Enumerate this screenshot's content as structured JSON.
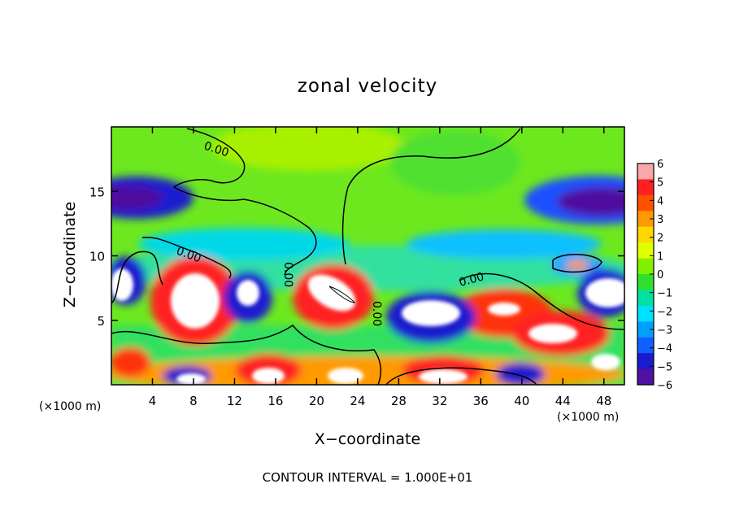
{
  "chart_data": {
    "type": "heatmap",
    "title": "zonal velocity",
    "xlabel": "X−coordinate",
    "ylabel": "Z−coordinate",
    "xlim": [
      0,
      50
    ],
    "ylim": [
      0,
      20
    ],
    "x_ticks": [
      "4",
      "8",
      "12",
      "16",
      "20",
      "24",
      "28",
      "32",
      "36",
      "40",
      "44",
      "48"
    ],
    "x_tick_values": [
      4,
      8,
      12,
      16,
      20,
      24,
      28,
      32,
      36,
      40,
      44,
      48
    ],
    "y_ticks": [
      "5",
      "10",
      "15"
    ],
    "y_tick_values": [
      5,
      10,
      15
    ],
    "x_unit_left": "(×1000 m)",
    "x_unit_right": "(×1000 m)",
    "colorbar": {
      "ticks": [
        "6",
        "5",
        "4",
        "3",
        "2",
        "1",
        "0",
        "−1",
        "−2",
        "−3",
        "−4",
        "−5",
        "−6"
      ],
      "tick_values": [
        6,
        5,
        4,
        3,
        2,
        1,
        0,
        -1,
        -2,
        -3,
        -4,
        -5,
        -6
      ],
      "range": [
        -6,
        6
      ],
      "colors_high_to_low": [
        "#f8a8a8",
        "#ff2020",
        "#ff5000",
        "#ff9a00",
        "#ffd800",
        "#e0ff00",
        "#80f000",
        "#30e030",
        "#00e0a0",
        "#00e0ff",
        "#00a0ff",
        "#1060ff",
        "#1a1acf",
        "#5010a0"
      ]
    },
    "contour_labels": [
      "0.00",
      "0.00",
      "0.00",
      "0.00",
      "0.00"
    ],
    "contour_interval": "CONTOUR INTERVAL = 1.000E+01",
    "grid": false,
    "features": [
      {
        "kind": "jet",
        "x": 1,
        "z": 14.5,
        "value": -6
      },
      {
        "kind": "jet",
        "x": 47,
        "z": 14.5,
        "value": -6
      },
      {
        "kind": "jet",
        "x": 4,
        "z": 13.2,
        "value": -4
      },
      {
        "kind": "jet",
        "x": 43,
        "z": 13.5,
        "value": -4
      },
      {
        "kind": "core",
        "x": 8,
        "z": 6.5,
        "value": 6
      },
      {
        "kind": "core",
        "x": 21,
        "z": 6.8,
        "value": 6
      },
      {
        "kind": "core",
        "x": 36,
        "z": 6.0,
        "value": 5
      },
      {
        "kind": "core",
        "x": 43,
        "z": 4.5,
        "value": 6
      },
      {
        "kind": "core",
        "x": 17,
        "z": 1.2,
        "value": 6
      },
      {
        "kind": "core",
        "x": 30,
        "z": 1.2,
        "value": 6
      },
      {
        "kind": "core",
        "x": 44,
        "z": 9.4,
        "value": 3
      },
      {
        "kind": "core",
        "x": 14,
        "z": 6.8,
        "value": -6
      },
      {
        "kind": "core",
        "x": 29,
        "z": 5.5,
        "value": -6
      },
      {
        "kind": "core",
        "x": 48,
        "z": 7.0,
        "value": -6
      },
      {
        "kind": "core",
        "x": 1.5,
        "z": 8.0,
        "value": -6
      }
    ]
  }
}
